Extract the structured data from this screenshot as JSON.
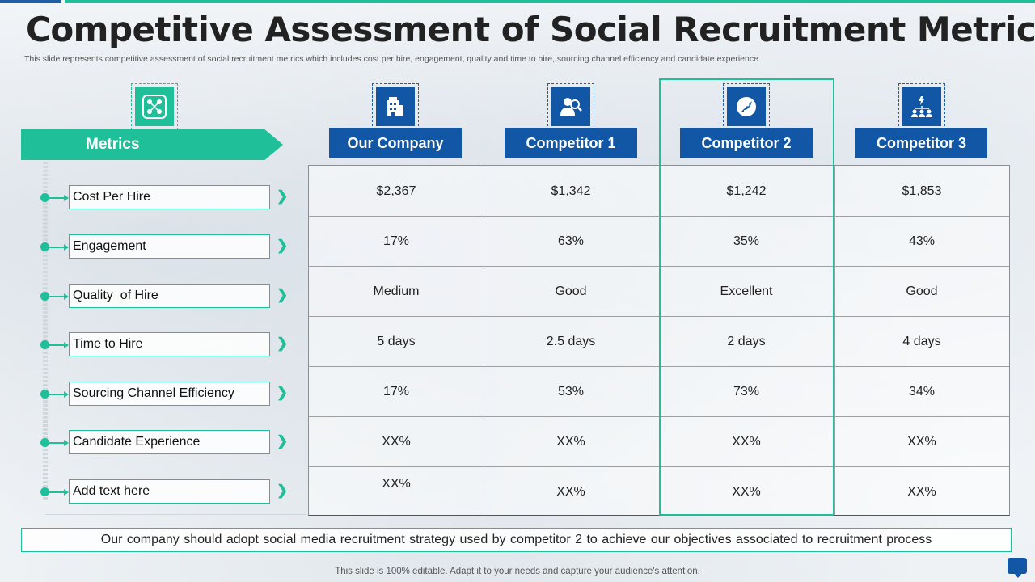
{
  "slide": {
    "title": "Competitive Assessment of Social Recruitment Metrics",
    "subtitle": "This slide represents competitive assessment of social recruitment metrics which includes cost per hire, engagement, quality and time to hire, sourcing channel efficiency and candidate experience.",
    "conclusion": "Our company should adopt social media recruitment strategy used by competitor 2 to achieve our objectives associated to recruitment process",
    "footer": "This slide is 100% editable. Adapt it to your needs and capture your audience's attention."
  },
  "colors": {
    "teal": "#1fbf9a",
    "blue": "#1257a6"
  },
  "icons": {
    "metrics": "network-nodes-icon",
    "our_company": "building-icon",
    "competitor_1": "person-search-icon",
    "competitor_2": "rocket-badge-icon",
    "competitor_3": "org-hierarchy-icon",
    "chat": "chat-bubble-icon"
  },
  "metrics_header": "Metrics",
  "columns": [
    "Our Company",
    "Competitor 1",
    "Competitor 2",
    "Competitor 3"
  ],
  "metrics": [
    "Cost Per Hire",
    "Engagement",
    "Quality  of Hire",
    "Time to Hire",
    "Sourcing Channel Efficiency",
    "Candidate Experience",
    "Add text here"
  ],
  "table": {
    "rows": [
      [
        "$2,367",
        "$1,342",
        "$1,242",
        "$1,853"
      ],
      [
        "17%",
        "63%",
        "35%",
        "43%"
      ],
      [
        "Medium",
        "Good",
        "Excellent",
        "Good"
      ],
      [
        "5 days",
        "2.5 days",
        "2 days",
        "4 days"
      ],
      [
        "17%",
        "53%",
        "73%",
        "34%"
      ],
      [
        "XX%",
        "XX%",
        "XX%",
        "XX%"
      ],
      [
        "XX%",
        "XX%",
        "XX%",
        "XX%"
      ]
    ]
  },
  "highlighted_column": "Competitor 2"
}
